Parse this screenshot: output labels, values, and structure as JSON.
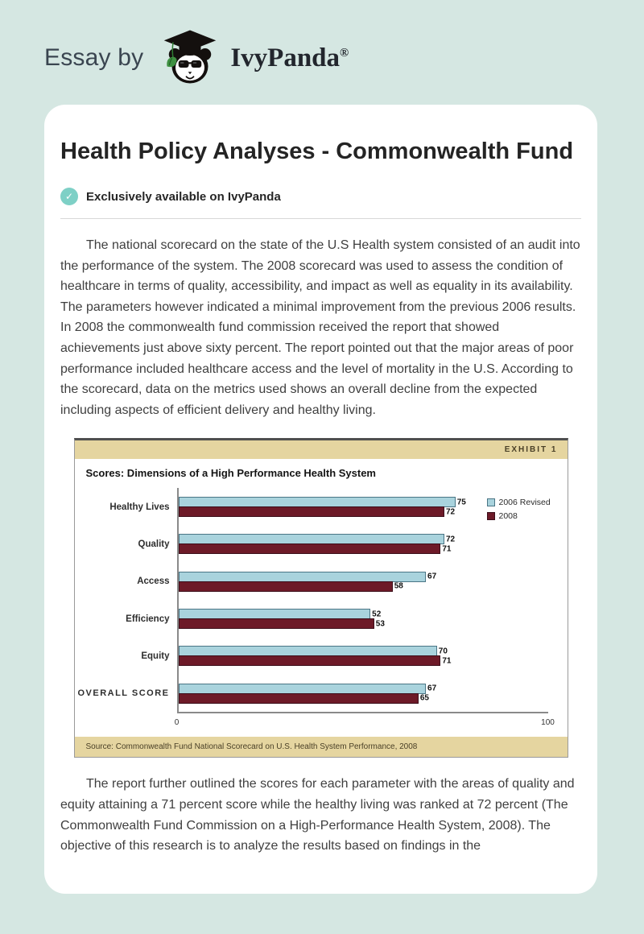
{
  "page_bg": "#d5e7e2",
  "header": {
    "prefix": "Essay by",
    "brand": "IvyPanda",
    "registered": "®"
  },
  "article": {
    "title": "Health Policy Analyses - Commonwealth Fund",
    "badge_label": "Exclusively available on IvyPanda",
    "badge_color": "#7ed0c6",
    "paragraphs": [
      "The national scorecard on the state of the U.S Health system consisted of an audit into the performance of the system. The 2008 scorecard was used to assess the condition of healthcare in terms of quality, accessibility, and impact as well as equality in its availability. The parameters however indicated a minimal improvement from the previous 2006 results. In 2008 the commonwealth fund commission received the report that showed achievements just above sixty percent. The report pointed out that the major areas of poor performance included healthcare access and the level of mortality in the U.S. According to the scorecard, data on the metrics used shows an overall decline from the expected including aspects of efficient delivery and healthy living.",
      "The report further outlined the scores for each parameter with the areas of quality and equity attaining a 71 percent score while the healthy living was ranked at 72 percent (The Commonwealth Fund Commission on a High-Performance Health System, 2008). The objective of this research is to analyze the results based on findings in the"
    ]
  },
  "chart_data": {
    "type": "bar",
    "orientation": "horizontal",
    "exhibit_label": "EXHIBIT 1",
    "title": "Scores: Dimensions of a High Performance Health System",
    "categories": [
      "Healthy Lives",
      "Quality",
      "Access",
      "Efficiency",
      "Equity",
      "OVERALL SCORE"
    ],
    "series": [
      {
        "name": "2006 Revised",
        "color": "#a9d3dd",
        "border": "#4a7585",
        "values": [
          75,
          72,
          67,
          52,
          70,
          67
        ]
      },
      {
        "name": "2008",
        "color": "#6d1a28",
        "border": "#3c0e1a",
        "values": [
          72,
          71,
          58,
          53,
          71,
          65
        ]
      }
    ],
    "xlim": [
      0,
      100
    ],
    "x_ticks": [
      0,
      100
    ],
    "legend_position": "top-right",
    "grid": false,
    "source": "Source: Commonwealth Fund National Scorecard on U.S. Health System Performance, 2008",
    "colors": {
      "band_bg": "#e5d5a0",
      "band_text": "#4a4027",
      "source_bg": "#e5d5a0",
      "source_text": "#4a4027",
      "axis": "#8a8a8a"
    }
  }
}
